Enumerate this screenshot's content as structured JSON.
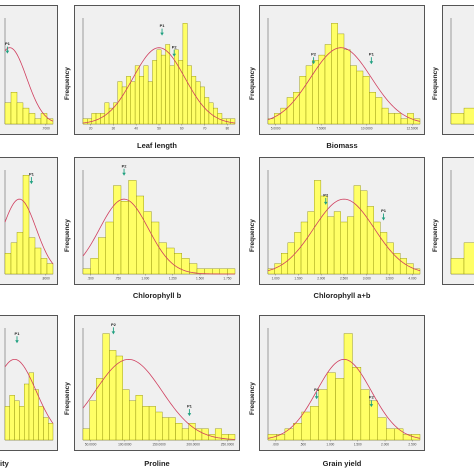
{
  "colors": {
    "bar_fill": "#ffff66",
    "bar_stroke": "#888800",
    "curve": "#d04060",
    "arrow": "#20a080",
    "plot_bg": "#f0f0f0"
  },
  "chart_data": [
    {
      "id": "p1",
      "type": "bar",
      "xlabel": "",
      "ylabel": "",
      "x_ticks": [
        ".7000"
      ],
      "values": [
        0.2,
        0.3,
        0.2,
        0.15,
        0.1,
        0.05,
        0.1,
        0.05
      ],
      "curve": {
        "mean": 0.1,
        "sd": 0.35
      },
      "markers": [
        {
          "label": "P1",
          "pos": 0.05,
          "value_ratio": 0.65
        }
      ]
    },
    {
      "id": "p2",
      "type": "bar",
      "xlabel": "Leaf length",
      "ylabel": "Frequency",
      "x_ticks": [
        "20",
        "30",
        "40",
        "50",
        "60",
        "70",
        "80"
      ],
      "values": [
        0.05,
        0.05,
        0.1,
        0.1,
        0.1,
        0.2,
        0.15,
        0.2,
        0.4,
        0.35,
        0.45,
        0.4,
        0.55,
        0.45,
        0.55,
        0.4,
        0.6,
        0.7,
        0.65,
        0.75,
        0.55,
        0.7,
        0.6,
        0.95,
        0.55,
        0.45,
        0.4,
        0.35,
        0.25,
        0.2,
        0.15,
        0.1,
        0.05,
        0.05,
        0.05
      ],
      "curve": {
        "mean": 0.5,
        "sd": 0.17
      },
      "markers": [
        {
          "label": "P1",
          "pos": 0.52,
          "value_ratio": 0.82
        },
        {
          "label": "P2",
          "pos": 0.6,
          "value_ratio": 0.62
        }
      ]
    },
    {
      "id": "p3",
      "type": "bar",
      "xlabel": "Biomass",
      "ylabel": "Frequency",
      "x_ticks": [
        "5.0000",
        "7.5000",
        "10.0000",
        "12.5000"
      ],
      "values": [
        0.05,
        0.1,
        0.15,
        0.25,
        0.3,
        0.45,
        0.55,
        0.6,
        0.65,
        0.75,
        0.95,
        0.85,
        0.7,
        0.55,
        0.5,
        0.45,
        0.3,
        0.25,
        0.15,
        0.1,
        0.1,
        0.05,
        0.1,
        0.05
      ],
      "curve": {
        "mean": 0.48,
        "sd": 0.2
      },
      "markers": [
        {
          "label": "P2",
          "pos": 0.3,
          "value_ratio": 0.55
        },
        {
          "label": "P1",
          "pos": 0.68,
          "value_ratio": 0.55
        }
      ]
    },
    {
      "id": "p4",
      "type": "bar",
      "xlabel": "",
      "ylabel": "Frequency",
      "x_ticks": [],
      "values": [
        0.1,
        0.15
      ],
      "curve": null,
      "markers": []
    },
    {
      "id": "p5",
      "type": "bar",
      "xlabel": "",
      "ylabel": "",
      "x_ticks": [
        ".8000"
      ],
      "values": [
        0.2,
        0.3,
        0.4,
        0.95,
        0.35,
        0.25,
        0.15,
        0.1
      ],
      "curve": {
        "mean": 0.3,
        "sd": 0.35
      },
      "markers": [
        {
          "label": "P1",
          "pos": 0.55,
          "value_ratio": 0.85
        }
      ]
    },
    {
      "id": "p6",
      "type": "bar",
      "xlabel": "Chlorophyll b",
      "ylabel": "Frequency",
      "x_ticks": [
        ".500",
        ".750",
        "1.000",
        "1.250",
        "1.500",
        "1.750"
      ],
      "values": [
        0.05,
        0.15,
        0.35,
        0.5,
        0.85,
        0.7,
        0.9,
        0.75,
        0.6,
        0.5,
        0.3,
        0.25,
        0.2,
        0.15,
        0.1,
        0.05,
        0.05,
        0.05,
        0.05,
        0.05
      ],
      "curve": {
        "mean": 0.27,
        "sd": 0.16
      },
      "markers": [
        {
          "label": "P2",
          "pos": 0.27,
          "value_ratio": 0.93
        }
      ]
    },
    {
      "id": "p7",
      "type": "bar",
      "xlabel": "Chlorophyll a+b",
      "ylabel": "Frequency",
      "x_ticks": [
        "1.000",
        "1.500",
        "2.000",
        "2.500",
        "3.000",
        "3.500",
        "4.000"
      ],
      "values": [
        0.05,
        0.1,
        0.2,
        0.3,
        0.4,
        0.5,
        0.6,
        0.9,
        0.75,
        0.55,
        0.6,
        0.5,
        0.55,
        0.85,
        0.8,
        0.65,
        0.5,
        0.4,
        0.3,
        0.2,
        0.15,
        0.1,
        0.05
      ],
      "curve": {
        "mean": 0.5,
        "sd": 0.2
      },
      "markers": [
        {
          "label": "P2",
          "pos": 0.38,
          "value_ratio": 0.65
        },
        {
          "label": "P1",
          "pos": 0.76,
          "value_ratio": 0.5
        }
      ]
    },
    {
      "id": "p8",
      "type": "bar",
      "xlabel": "",
      "ylabel": "Frequency",
      "x_ticks": [],
      "values": [
        0.15,
        0.3
      ],
      "curve": null,
      "markers": []
    },
    {
      "id": "p9",
      "type": "bar",
      "xlabel": "ity",
      "ylabel": "",
      "x_ticks": [],
      "values": [
        0.3,
        0.4,
        0.35,
        0.3,
        0.5,
        0.6,
        0.45,
        0.3,
        0.2,
        0.15
      ],
      "curve": {
        "mean": 0.2,
        "sd": 0.45
      },
      "markers": [
        {
          "label": "P1",
          "pos": 0.25,
          "value_ratio": 0.85
        }
      ]
    },
    {
      "id": "p10",
      "type": "bar",
      "xlabel": "Proline",
      "ylabel": "Frequency",
      "x_ticks": [
        "50.0000",
        "100.0000",
        "150.0000",
        "200.0000",
        "250.0000"
      ],
      "values": [
        0.1,
        0.35,
        0.55,
        0.95,
        0.8,
        0.75,
        0.45,
        0.35,
        0.4,
        0.3,
        0.3,
        0.25,
        0.2,
        0.2,
        0.15,
        0.1,
        0.15,
        0.1,
        0.1,
        0.05,
        0.1,
        0.05,
        0.05
      ],
      "curve": {
        "mean": 0.3,
        "sd": 0.22
      },
      "markers": [
        {
          "label": "P2",
          "pos": 0.2,
          "value_ratio": 0.93
        },
        {
          "label": "P1",
          "pos": 0.7,
          "value_ratio": 0.2
        }
      ]
    },
    {
      "id": "p11",
      "type": "bar",
      "xlabel": "Grain yield",
      "ylabel": "Frequency",
      "x_ticks": [
        ".000",
        ".500",
        "1.000",
        "1.500",
        "2.000",
        "2.500"
      ],
      "values": [
        0.05,
        0.05,
        0.1,
        0.15,
        0.25,
        0.3,
        0.45,
        0.6,
        0.55,
        0.95,
        0.65,
        0.45,
        0.35,
        0.2,
        0.1,
        0.1,
        0.05,
        0.05
      ],
      "curve": {
        "mean": 0.5,
        "sd": 0.18
      },
      "markers": [
        {
          "label": "P1",
          "pos": 0.32,
          "value_ratio": 0.35
        },
        {
          "label": "P2",
          "pos": 0.68,
          "value_ratio": 0.28
        }
      ]
    }
  ]
}
